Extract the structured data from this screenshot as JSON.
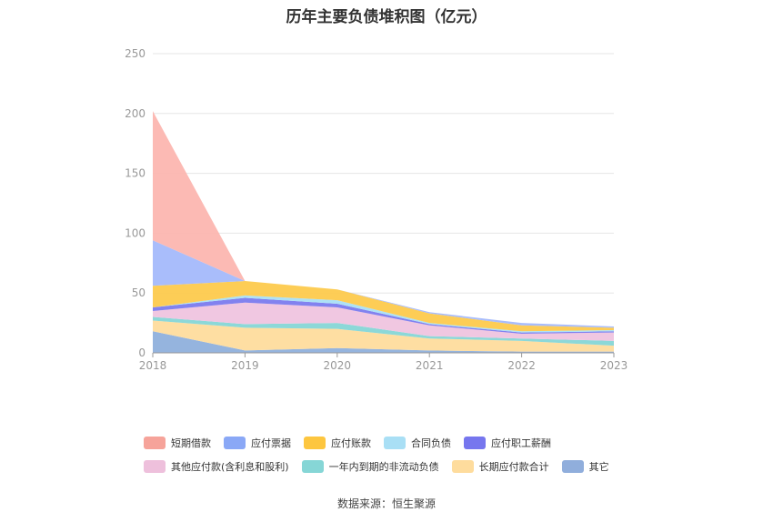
{
  "title": "历年主要负债堆积图（亿元）",
  "source": "数据来源：恒生聚源",
  "chart_data": {
    "type": "area",
    "stacked": true,
    "categories": [
      "2018",
      "2019",
      "2020",
      "2021",
      "2022",
      "2023"
    ],
    "ylim": [
      0,
      250
    ],
    "yticks": [
      0,
      50,
      100,
      150,
      200,
      250
    ],
    "grid": true,
    "legend_position": "bottom",
    "series": [
      {
        "name": "其它",
        "color": "#8fb0dc",
        "values": [
          18,
          2,
          4,
          2,
          1,
          1
        ]
      },
      {
        "name": "长期应付款合计",
        "color": "#fedc9d",
        "values": [
          9,
          19,
          16,
          10,
          9,
          5
        ]
      },
      {
        "name": "一年内到期的非流动负债",
        "color": "#86d6d6",
        "values": [
          3,
          3,
          5,
          2,
          2,
          4
        ]
      },
      {
        "name": "其他应付款(含利息和股利)",
        "color": "#efc4df",
        "values": [
          5,
          18,
          13,
          9,
          4,
          7
        ]
      },
      {
        "name": "应付职工薪酬",
        "color": "#7b7bee",
        "values": [
          3,
          4,
          3,
          1,
          1,
          1
        ]
      },
      {
        "name": "合同负债",
        "color": "#a9dff5",
        "values": [
          0,
          2,
          3,
          1,
          1,
          1
        ]
      },
      {
        "name": "应付账款",
        "color": "#fdca4d",
        "values": [
          18,
          12,
          9,
          8,
          5,
          2
        ]
      },
      {
        "name": "应付票据",
        "color": "#a4b9fb",
        "values": [
          38,
          0,
          0,
          1,
          2,
          1
        ]
      },
      {
        "name": "短期借款",
        "color": "#fcb6b0",
        "values": [
          108,
          0,
          0,
          0,
          0,
          0
        ]
      }
    ]
  },
  "legend": {
    "rows": [
      [
        {
          "name": "短期借款",
          "color": "#f6a39a"
        },
        {
          "name": "应付票据",
          "color": "#8aa8f6"
        },
        {
          "name": "应付账款",
          "color": "#fdc63f"
        },
        {
          "name": "合同负债",
          "color": "#a9dff5"
        },
        {
          "name": "应付职工薪酬",
          "color": "#7676ee"
        }
      ],
      [
        {
          "name": "其他应付款(含利息和股利)",
          "color": "#eec0dc"
        },
        {
          "name": "一年内到期的非流动负债",
          "color": "#86d6d6"
        },
        {
          "name": "长期应付款合计",
          "color": "#fedc9d"
        },
        {
          "name": "其它",
          "color": "#90aedc"
        }
      ]
    ]
  }
}
